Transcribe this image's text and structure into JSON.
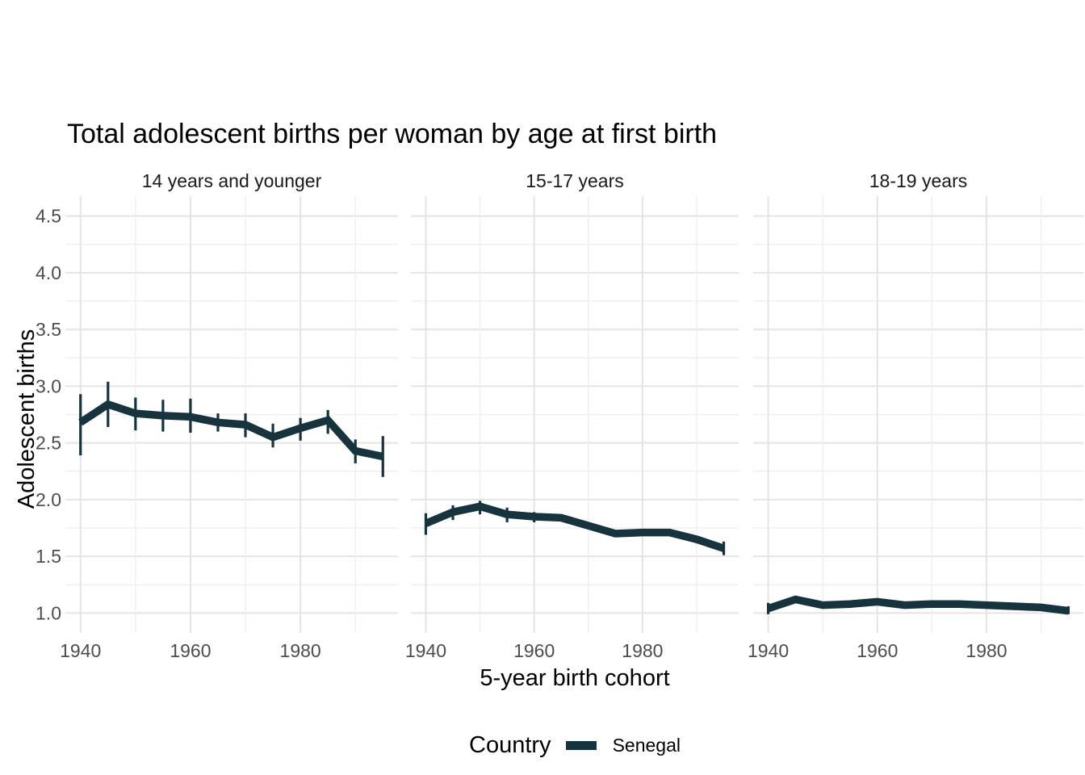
{
  "title": "Total adolescent births per woman by age at first birth",
  "colors": {
    "series": "#16333e",
    "grid_major": "#e4e4e4",
    "grid_minor": "#efefef",
    "axis_text": "#4d4d4d",
    "strip_text": "#1a1a1a",
    "title_text": "#000000",
    "background": "#ffffff"
  },
  "legend": {
    "title": "Country",
    "position": "bottom",
    "items": [
      {
        "label": "Senegal",
        "color": "#16333e",
        "swatch": "thick-line"
      }
    ]
  },
  "chart_data": {
    "type": "line",
    "title": "Total adolescent births per woman by age at first birth",
    "xlabel": "5-year birth cohort",
    "ylabel": "Adolescent births",
    "series_name": "Senegal",
    "error_bars": true,
    "grid": true,
    "legend_position": "bottom",
    "x": [
      1940,
      1945,
      1950,
      1955,
      1960,
      1965,
      1970,
      1975,
      1980,
      1985,
      1990,
      1995
    ],
    "xticks": [
      1940,
      1960,
      1980
    ],
    "xtick_labels": [
      "1940",
      "1960",
      "1980"
    ],
    "xminor": [
      1950,
      1970,
      1990
    ],
    "xlim": [
      1937.25,
      1997.75
    ],
    "yticks": [
      1.0,
      1.5,
      2.0,
      2.5,
      3.0,
      3.5,
      4.0,
      4.5
    ],
    "ytick_labels": [
      "1.0",
      "1.5",
      "2.0",
      "2.5",
      "3.0",
      "3.5",
      "4.0",
      "4.5"
    ],
    "yminor": [
      1.25,
      1.75,
      2.25,
      2.75,
      3.25,
      3.75,
      4.25
    ],
    "ylim": [
      0.825,
      4.675
    ],
    "facets": [
      {
        "label": "14 years and younger",
        "y": [
          2.68,
          2.84,
          2.76,
          2.74,
          2.73,
          2.68,
          2.66,
          2.55,
          2.63,
          2.7,
          2.43,
          2.38
        ],
        "lower": [
          2.39,
          2.64,
          2.61,
          2.6,
          2.59,
          2.6,
          2.55,
          2.46,
          2.52,
          2.58,
          2.32,
          2.2
        ],
        "upper": [
          2.93,
          3.04,
          2.9,
          2.88,
          2.89,
          2.76,
          2.76,
          2.67,
          2.72,
          2.79,
          2.53,
          2.56
        ]
      },
      {
        "label": "15-17 years",
        "y": [
          1.79,
          1.89,
          1.94,
          1.87,
          1.85,
          1.84,
          1.77,
          1.7,
          1.71,
          1.71,
          1.65,
          1.57
        ],
        "lower": [
          1.69,
          1.82,
          1.87,
          1.8,
          1.8,
          1.81,
          1.74,
          1.67,
          1.68,
          1.68,
          1.62,
          1.51
        ],
        "upper": [
          1.88,
          1.95,
          1.99,
          1.93,
          1.89,
          1.87,
          1.8,
          1.73,
          1.74,
          1.74,
          1.68,
          1.63
        ]
      },
      {
        "label": "18-19 years",
        "y": [
          1.04,
          1.12,
          1.07,
          1.08,
          1.1,
          1.07,
          1.08,
          1.08,
          1.07,
          1.06,
          1.05,
          1.02
        ],
        "lower": [
          0.99,
          1.09,
          1.04,
          1.05,
          1.07,
          1.05,
          1.06,
          1.06,
          1.05,
          1.04,
          1.03,
          0.99
        ],
        "upper": [
          1.09,
          1.15,
          1.1,
          1.11,
          1.13,
          1.1,
          1.1,
          1.1,
          1.09,
          1.08,
          1.07,
          1.06
        ]
      }
    ]
  }
}
